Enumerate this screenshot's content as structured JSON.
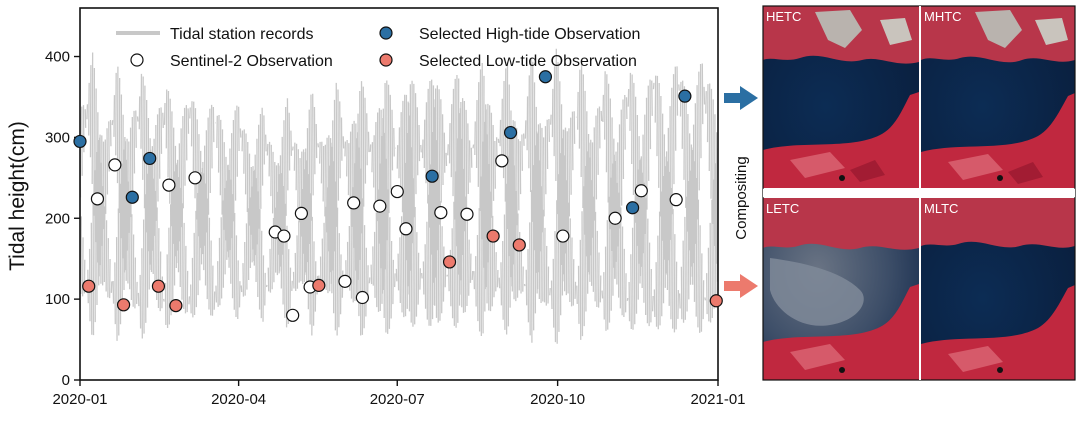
{
  "chart_data": {
    "type": "line",
    "xlabel": "",
    "ylabel": "Tidal height(cm)",
    "xlim": [
      "2020-01-01",
      "2021-01-01"
    ],
    "ylim": [
      0,
      460
    ],
    "x_ticks": [
      "2020-01",
      "2020-04",
      "2020-07",
      "2020-10",
      "2021-01"
    ],
    "y_ticks": [
      0,
      100,
      200,
      300,
      400
    ],
    "legend": {
      "placement": "top",
      "entries": [
        {
          "label": "Tidal station records",
          "style": "line",
          "color": "#c8c8c8"
        },
        {
          "label": "Selected High-tide Observation",
          "style": "circle",
          "color": "#2b6fa3"
        },
        {
          "label": "Sentinel-2 Observation",
          "style": "circle",
          "color": "#ffffff"
        },
        {
          "label": "Selected Low-tide Observation",
          "style": "circle",
          "color": "#ec7a6d"
        }
      ]
    },
    "series": [
      {
        "name": "Tidal station records",
        "kind": "band",
        "color": "#c8c8c8",
        "x": [
          "2020-01-01",
          "2020-01-08",
          "2020-01-15",
          "2020-01-22",
          "2020-01-29",
          "2020-02-05",
          "2020-02-12",
          "2020-02-19",
          "2020-02-26",
          "2020-03-04",
          "2020-03-11",
          "2020-03-18",
          "2020-03-25",
          "2020-04-01",
          "2020-04-08",
          "2020-04-15",
          "2020-04-22",
          "2020-04-29",
          "2020-05-06",
          "2020-05-13",
          "2020-05-20",
          "2020-05-27",
          "2020-06-03",
          "2020-06-10",
          "2020-06-17",
          "2020-06-24",
          "2020-07-01",
          "2020-07-08",
          "2020-07-15",
          "2020-07-22",
          "2020-07-29",
          "2020-08-05",
          "2020-08-12",
          "2020-08-19",
          "2020-08-26",
          "2020-09-02",
          "2020-09-09",
          "2020-09-16",
          "2020-09-23",
          "2020-09-30",
          "2020-10-07",
          "2020-10-14",
          "2020-10-21",
          "2020-10-28",
          "2020-11-04",
          "2020-11-11",
          "2020-11-18",
          "2020-11-25",
          "2020-12-02",
          "2020-12-09",
          "2020-12-16",
          "2020-12-23",
          "2020-12-31"
        ],
        "high": [
          330,
          405,
          290,
          395,
          300,
          390,
          300,
          380,
          290,
          375,
          285,
          365,
          280,
          355,
          270,
          345,
          265,
          350,
          275,
          360,
          285,
          370,
          295,
          380,
          300,
          390,
          305,
          400,
          310,
          410,
          300,
          405,
          295,
          410,
          300,
          400,
          290,
          405,
          300,
          410,
          305,
          400,
          300,
          395,
          295,
          405,
          300,
          415,
          305,
          420,
          310,
          410,
          330
        ],
        "low": [
          110,
          50,
          120,
          45,
          115,
          40,
          120,
          45,
          125,
          50,
          130,
          55,
          135,
          60,
          140,
          65,
          130,
          60,
          125,
          55,
          120,
          50,
          115,
          45,
          110,
          40,
          105,
          45,
          100,
          40,
          105,
          45,
          110,
          40,
          105,
          50,
          110,
          45,
          100,
          40,
          105,
          45,
          110,
          50,
          105,
          45,
          100,
          40,
          95,
          40,
          100,
          45,
          90
        ]
      },
      {
        "name": "Sentinel-2 Observation",
        "kind": "points",
        "points": [
          {
            "x": "2020-01-11",
            "y": 224
          },
          {
            "x": "2020-01-21",
            "y": 266
          },
          {
            "x": "2020-02-21",
            "y": 241
          },
          {
            "x": "2020-03-07",
            "y": 250
          },
          {
            "x": "2020-04-22",
            "y": 183
          },
          {
            "x": "2020-04-27",
            "y": 178
          },
          {
            "x": "2020-05-02",
            "y": 80
          },
          {
            "x": "2020-05-07",
            "y": 206
          },
          {
            "x": "2020-05-12",
            "y": 115
          },
          {
            "x": "2020-06-01",
            "y": 122
          },
          {
            "x": "2020-06-06",
            "y": 219
          },
          {
            "x": "2020-06-11",
            "y": 102
          },
          {
            "x": "2020-06-21",
            "y": 215
          },
          {
            "x": "2020-07-01",
            "y": 233
          },
          {
            "x": "2020-07-06",
            "y": 187
          },
          {
            "x": "2020-07-26",
            "y": 207
          },
          {
            "x": "2020-08-10",
            "y": 205
          },
          {
            "x": "2020-08-30",
            "y": 271
          },
          {
            "x": "2020-10-04",
            "y": 178
          },
          {
            "x": "2020-11-03",
            "y": 200
          },
          {
            "x": "2020-11-18",
            "y": 234
          },
          {
            "x": "2020-12-08",
            "y": 223
          }
        ]
      },
      {
        "name": "Selected High-tide Observation",
        "kind": "points",
        "points": [
          {
            "x": "2020-01-01",
            "y": 295
          },
          {
            "x": "2020-01-31",
            "y": 226
          },
          {
            "x": "2020-02-10",
            "y": 274
          },
          {
            "x": "2020-07-21",
            "y": 252
          },
          {
            "x": "2020-09-04",
            "y": 306
          },
          {
            "x": "2020-09-24",
            "y": 375
          },
          {
            "x": "2020-11-13",
            "y": 213
          },
          {
            "x": "2020-12-13",
            "y": 351
          }
        ]
      },
      {
        "name": "Selected Low-tide Observation",
        "kind": "points",
        "points": [
          {
            "x": "2020-01-06",
            "y": 116
          },
          {
            "x": "2020-01-26",
            "y": 93
          },
          {
            "x": "2020-02-15",
            "y": 116
          },
          {
            "x": "2020-02-25",
            "y": 92
          },
          {
            "x": "2020-05-17",
            "y": 117
          },
          {
            "x": "2020-07-31",
            "y": 146
          },
          {
            "x": "2020-08-25",
            "y": 178
          },
          {
            "x": "2020-09-09",
            "y": 167
          },
          {
            "x": "2020-12-31",
            "y": 98
          }
        ]
      }
    ]
  },
  "side_panel": {
    "label": "Compositing",
    "arrow_high_color": "#2b6fa3",
    "arrow_low_color": "#ec7a6d",
    "images": [
      {
        "label": "HETC",
        "tide": "high"
      },
      {
        "label": "MHTC",
        "tide": "high"
      },
      {
        "label": "LETC",
        "tide": "low"
      },
      {
        "label": "MLTC",
        "tide": "low"
      }
    ]
  }
}
